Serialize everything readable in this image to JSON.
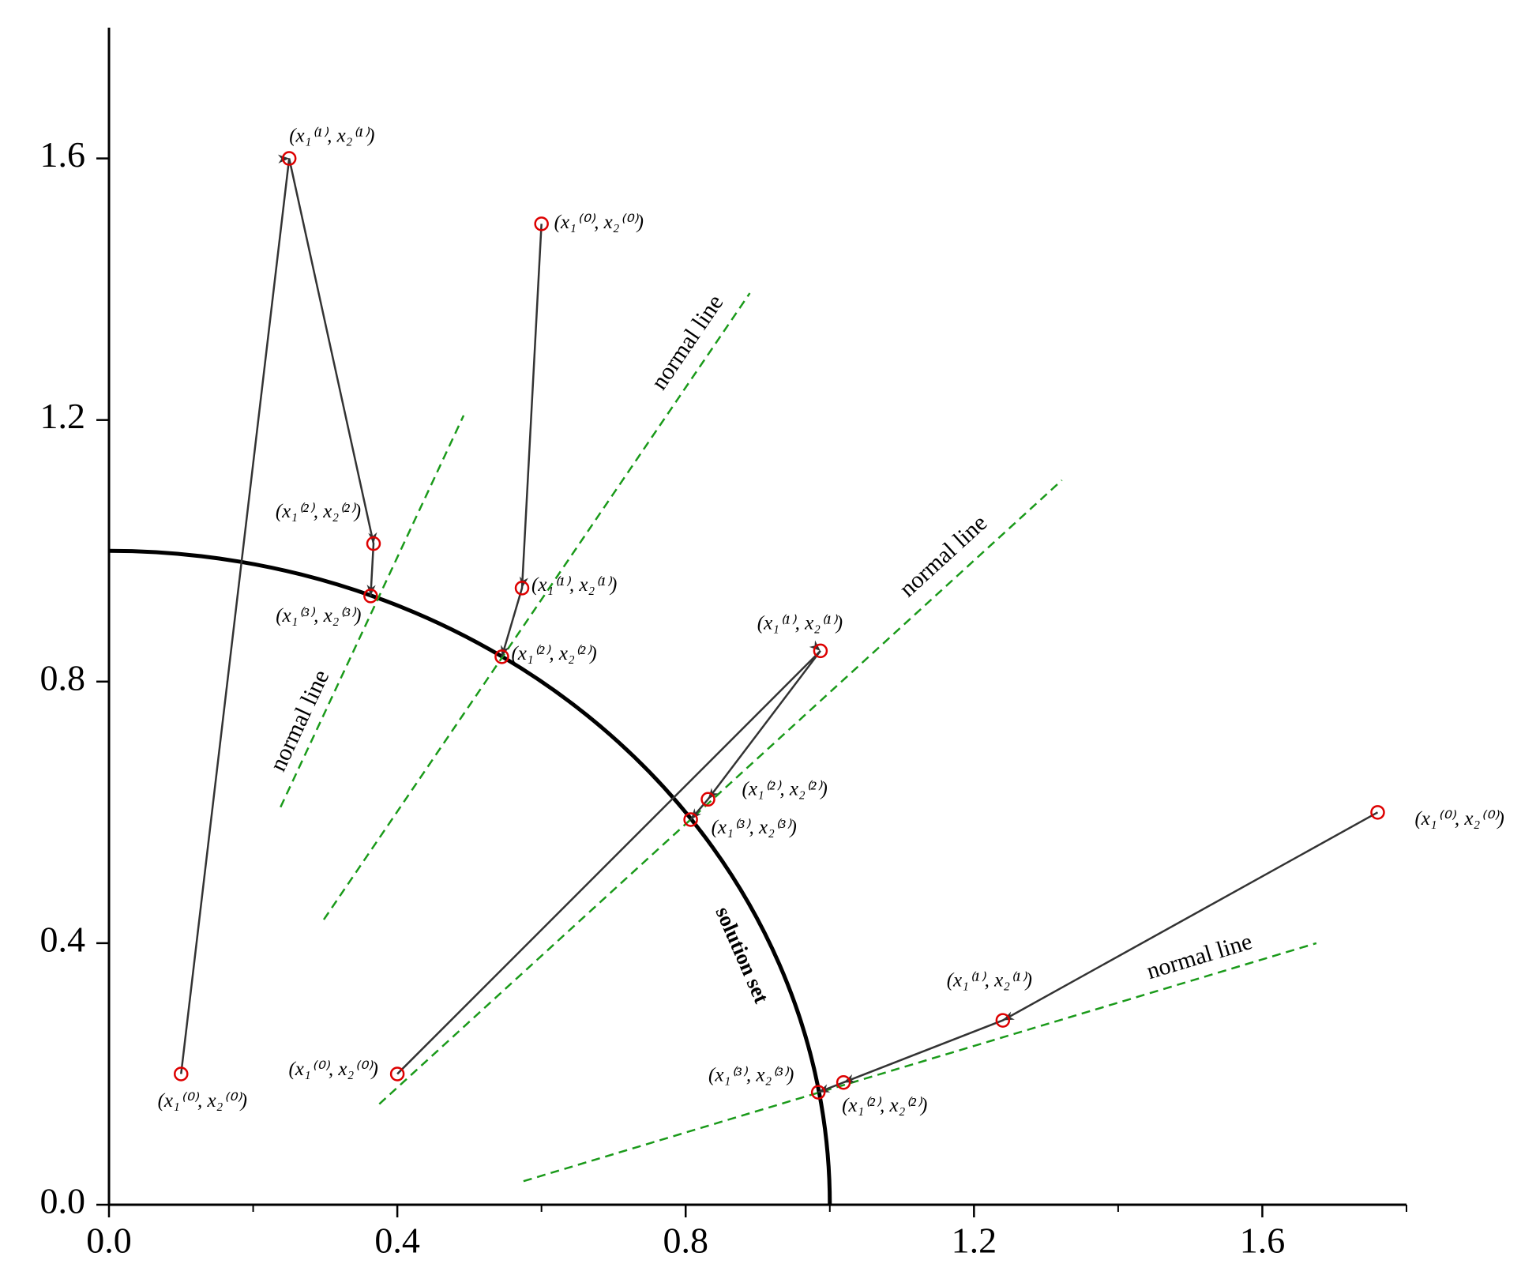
{
  "chart_data": {
    "type": "line",
    "xlim": [
      0,
      1.8
    ],
    "ylim": [
      0,
      1.8
    ],
    "xticks": [
      {
        "value": 0,
        "label": "0.0"
      },
      0.4,
      0.8,
      1.2,
      1.6
    ],
    "xticks_minor": [
      0.2,
      0.6,
      1.0,
      1.4,
      1.8
    ],
    "yticks": [
      {
        "value": 0,
        "label": "0.0"
      },
      0.4,
      0.8,
      1.2,
      1.6
    ],
    "solution_set": {
      "label": "solution set",
      "radius": 1,
      "color": "#000000"
    },
    "normal_lines": [
      {
        "label": "normal line",
        "x": [
          0.238,
          0.492
        ],
        "y": [
          0.608,
          1.207
        ],
        "color": "#1a9a1a"
      },
      {
        "label": "normal line",
        "x": [
          0.298,
          0.889
        ],
        "y": [
          0.436,
          1.394
        ],
        "color": "#1a9a1a"
      },
      {
        "label": "normal line",
        "x": [
          0.375,
          1.322
        ],
        "y": [
          0.154,
          1.108
        ],
        "color": "#1a9a1a"
      },
      {
        "label": "normal line",
        "x": [
          0.575,
          1.675
        ],
        "y": [
          0.036,
          0.4
        ],
        "color": "#1a9a1a"
      }
    ],
    "series": [
      {
        "color": "#333333",
        "marker_color": "#dd0000",
        "x": [
          0.1,
          0.25,
          0.367,
          0.363
        ],
        "values": [
          0.2,
          1.6,
          1.011,
          0.931
        ],
        "labels": [
          "(x₁⁽⁰⁾, x₂⁽⁰⁾)",
          "(x₁⁽¹⁾, x₂⁽¹⁾)",
          "(x₁⁽²⁾, x₂⁽²⁾)",
          "(x₁⁽³⁾, x₂⁽³⁾)"
        ]
      },
      {
        "color": "#333333",
        "marker_color": "#dd0000",
        "x": [
          0.6,
          0.573,
          0.545
        ],
        "values": [
          1.5,
          0.943,
          0.838
        ],
        "labels": [
          "(x₁⁽⁰⁾, x₂⁽⁰⁾)",
          "(x₁⁽¹⁾, x₂⁽¹⁾)",
          "(x₁⁽²⁾, x₂⁽²⁾)"
        ]
      },
      {
        "color": "#333333",
        "marker_color": "#dd0000",
        "x": [
          0.4,
          0.987,
          0.831,
          0.807
        ],
        "values": [
          0.2,
          0.847,
          0.62,
          0.589
        ],
        "labels": [
          "(x₁⁽⁰⁾, x₂⁽⁰⁾)",
          "(x₁⁽¹⁾, x₂⁽¹⁾)",
          "(x₁⁽²⁾, x₂⁽²⁾)",
          "(x₁⁽³⁾, x₂⁽³⁾)"
        ]
      },
      {
        "color": "#333333",
        "marker_color": "#dd0000",
        "x": [
          1.76,
          1.24,
          1.019,
          0.984
        ],
        "values": [
          0.6,
          0.282,
          0.187,
          0.172
        ],
        "labels": [
          "(x₁⁽⁰⁾, x₂⁽⁰⁾)",
          "(x₁⁽¹⁾, x₂⁽¹⁾)",
          "(x₁⁽²⁾, x₂⁽²⁾)",
          "(x₁⁽³⁾, x₂⁽³⁾)"
        ]
      }
    ]
  }
}
